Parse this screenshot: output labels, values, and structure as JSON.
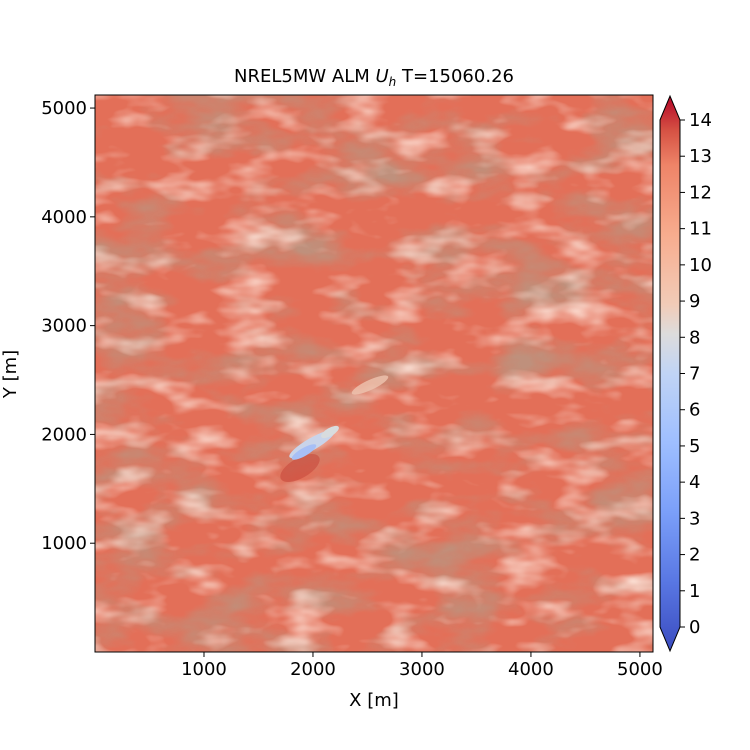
{
  "chart_data": {
    "type": "heatmap",
    "title_prefix": "NREL5MW ALM ",
    "title_var": "U",
    "title_sub": "h",
    "title_suffix": " T=15060.26",
    "xlabel": "X [m]",
    "ylabel": "Y [m]",
    "xlim": [
      0,
      5120
    ],
    "ylim": [
      0,
      5120
    ],
    "xticks": [
      1000,
      2000,
      3000,
      4000,
      5000
    ],
    "yticks": [
      1000,
      2000,
      3000,
      4000,
      5000
    ],
    "colorbar": {
      "colormap": "coolwarm",
      "min": 0,
      "max": 14,
      "ticks": [
        0,
        1,
        2,
        3,
        4,
        5,
        6,
        7,
        8,
        9,
        10,
        11,
        12,
        13,
        14
      ],
      "extend": "both",
      "colors": {
        "low": "#3b4cc0",
        "mid": "#dddddd",
        "high": "#b40426"
      }
    },
    "field": {
      "description": "hub-height wind speed with low-speed wake region",
      "background_speed": 11,
      "wake": {
        "x": 2060,
        "y": 1830,
        "min_speed": 5.5
      }
    }
  }
}
